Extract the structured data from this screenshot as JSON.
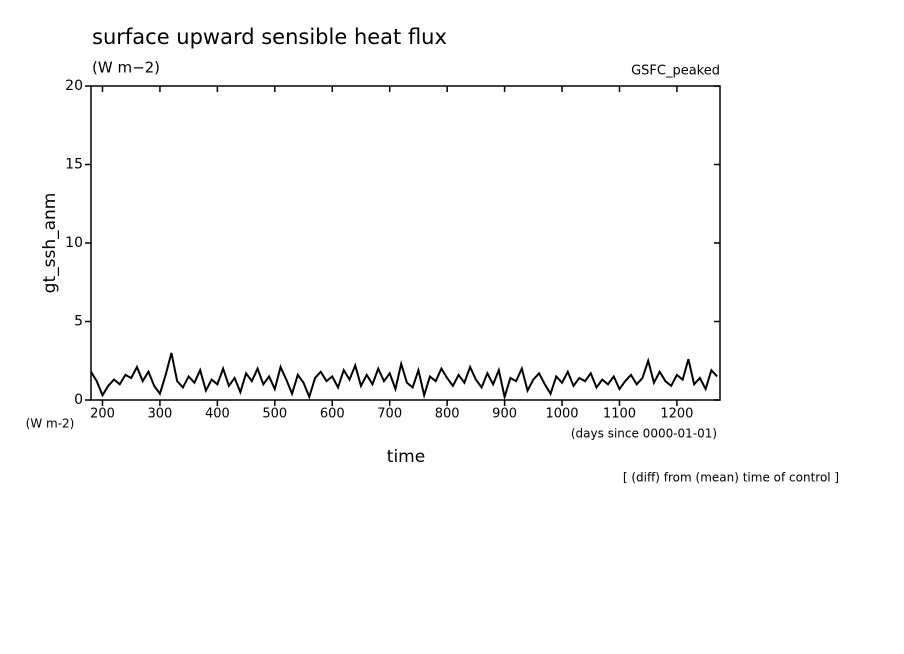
{
  "chart_data": {
    "type": "line",
    "title": "surface upward sensible heat flux",
    "subtitle": "(W m−2)",
    "annotation": "GSFC_peaked",
    "y_label": "gt_ssh_anm",
    "y_units": "(W m-2)",
    "x_label": "time",
    "x_units": "(days since 0000-01-01)",
    "footnote": "[ (diff) from (mean) time of control ]",
    "xlim": [
      180,
      1275
    ],
    "ylim": [
      0,
      20
    ],
    "xticks": [
      200,
      300,
      400,
      500,
      600,
      700,
      800,
      900,
      1000,
      1100,
      1200
    ],
    "yticks": [
      0,
      5,
      10,
      15,
      20
    ],
    "series": [
      {
        "color": "#000000",
        "x": [
          180,
          190,
          200,
          210,
          220,
          230,
          240,
          250,
          260,
          270,
          280,
          290,
          300,
          310,
          320,
          330,
          340,
          350,
          360,
          370,
          380,
          390,
          400,
          410,
          420,
          430,
          440,
          450,
          460,
          470,
          480,
          490,
          500,
          510,
          520,
          530,
          540,
          550,
          560,
          570,
          580,
          590,
          600,
          610,
          620,
          630,
          640,
          650,
          660,
          670,
          680,
          690,
          700,
          710,
          720,
          730,
          740,
          750,
          760,
          770,
          780,
          790,
          800,
          810,
          820,
          830,
          840,
          850,
          860,
          870,
          880,
          890,
          900,
          910,
          920,
          930,
          940,
          950,
          960,
          970,
          980,
          990,
          1000,
          1010,
          1020,
          1030,
          1040,
          1050,
          1060,
          1070,
          1080,
          1090,
          1100,
          1110,
          1120,
          1130,
          1140,
          1150,
          1160,
          1170,
          1180,
          1190,
          1200,
          1210,
          1220,
          1230,
          1240,
          1250,
          1260,
          1270
        ],
        "values": [
          1.8,
          1.2,
          0.3,
          0.9,
          1.3,
          1.0,
          1.6,
          1.4,
          2.1,
          1.2,
          1.8,
          0.9,
          0.4,
          1.6,
          3.0,
          1.2,
          0.8,
          1.5,
          1.1,
          1.9,
          0.6,
          1.3,
          1.0,
          2.0,
          0.9,
          1.4,
          0.5,
          1.7,
          1.2,
          2.0,
          1.0,
          1.5,
          0.7,
          2.1,
          1.3,
          0.4,
          1.6,
          1.1,
          0.2,
          1.4,
          1.8,
          1.2,
          1.5,
          0.8,
          1.9,
          1.3,
          2.2,
          0.9,
          1.6,
          1.0,
          2.0,
          1.2,
          1.7,
          0.7,
          2.3,
          1.1,
          0.8,
          1.9,
          0.3,
          1.5,
          1.2,
          2.0,
          1.4,
          0.9,
          1.6,
          1.1,
          2.1,
          1.3,
          0.8,
          1.7,
          1.0,
          1.9,
          0.2,
          1.4,
          1.2,
          2.0,
          0.6,
          1.3,
          1.7,
          1.0,
          0.4,
          1.5,
          1.1,
          1.8,
          0.9,
          1.4,
          1.2,
          1.7,
          0.8,
          1.3,
          1.0,
          1.5,
          0.7,
          1.2,
          1.6,
          1.0,
          1.4,
          2.5,
          1.1,
          1.8,
          1.2,
          0.9,
          1.6,
          1.3,
          2.6,
          1.0,
          1.4,
          0.7,
          1.9,
          1.5
        ]
      }
    ]
  }
}
